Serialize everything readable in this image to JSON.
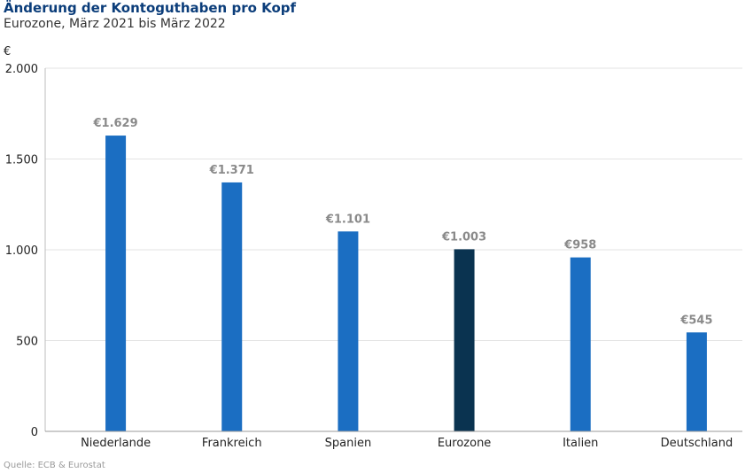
{
  "header": {
    "title": "Änderung der Kontoguthaben pro Kopf",
    "subtitle": "Eurozone, März 2021 bis März 2022"
  },
  "footer": {
    "source": "Quelle: ECB & Eurostat"
  },
  "chart_data": {
    "type": "bar",
    "ylabel": "€",
    "ylim": [
      0,
      2000
    ],
    "yticks": [
      0,
      500,
      1000,
      1500,
      2000
    ],
    "ytick_labels": [
      "0",
      "500",
      "1.000",
      "1.500",
      "2.000"
    ],
    "grid": true,
    "categories": [
      "Niederlande",
      "Frankreich",
      "Spanien",
      "Eurozone",
      "Italien",
      "Deutschland"
    ],
    "values": [
      1629,
      1371,
      1101,
      1003,
      958,
      545
    ],
    "value_labels": [
      "€1.629",
      "€1.371",
      "€1.101",
      "€1.003",
      "€958",
      "€545"
    ],
    "colors": [
      "#1b6ec2",
      "#1b6ec2",
      "#1b6ec2",
      "#0a3350",
      "#1b6ec2",
      "#1b6ec2"
    ]
  }
}
